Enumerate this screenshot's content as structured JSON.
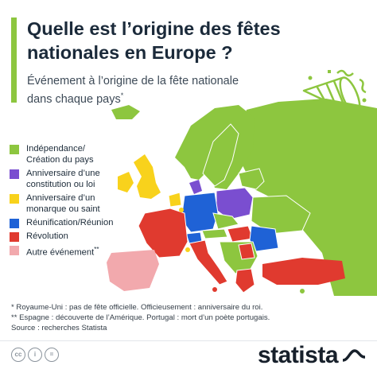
{
  "header": {
    "title_line1": "Quelle est l’origine des fêtes",
    "title_line2": "nationales en Europe ?",
    "subtitle_line1": "Événement à l’origine de la fête nationale",
    "subtitle_line2": "dans chaque pays",
    "subtitle_marker": "*"
  },
  "colors": {
    "accent": "#8dc63f",
    "independence": "#8dc63f",
    "constitution": "#7a4ed0",
    "monarch": "#f8d21c",
    "reunification": "#1f62d6",
    "revolution": "#e03a2f",
    "other": "#f2a9ad",
    "no_data": "#d8dadd"
  },
  "legend": [
    {
      "key": "independence",
      "label_line1": "Indépendance/",
      "label_line2": "Création du pays"
    },
    {
      "key": "constitution",
      "label_line1": "Anniversaire d’une",
      "label_line2": "constitution ou loi"
    },
    {
      "key": "monarch",
      "label_line1": "Anniversaire d’un",
      "label_line2": "monarque ou saint"
    },
    {
      "key": "reunification",
      "label_line1": "Réunification/Réunion",
      "label_line2": ""
    },
    {
      "key": "revolution",
      "label_line1": "Révolution",
      "label_line2": ""
    },
    {
      "key": "other",
      "label_line1": "Autre événement",
      "label_line2": "",
      "marker": "**"
    }
  ],
  "notes": {
    "note1": "*   Royaume-Uni : pas de fête officielle. Officieusement : anniversaire du roi.",
    "note2": "** Espagne : découverte de l’Amérique. Portugal : mort d’un poète portugais.",
    "source": "Source : recherches Statista"
  },
  "footer": {
    "cc_icons": [
      "creative-commons-icon",
      "attribution-icon",
      "no-derivatives-icon"
    ],
    "cc_glyphs": [
      "cc",
      "i",
      "="
    ],
    "brand": "statista"
  }
}
